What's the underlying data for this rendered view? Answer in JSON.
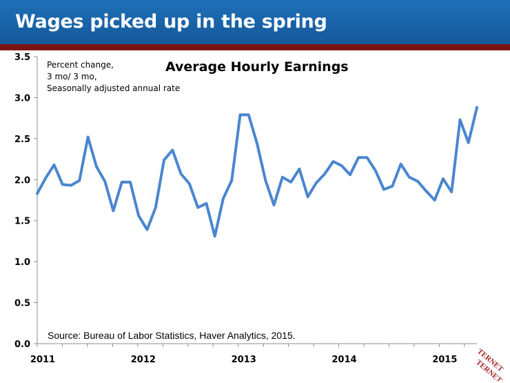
{
  "header": {
    "title": "Wages picked up in the spring"
  },
  "note_lines": [
    "Percent change,",
    "3 mo/ 3 mo,",
    "Seasonally adjusted annual rate"
  ],
  "source": "Source: Bureau of Labor Statistics, Haver Analytics, 2015.",
  "logo_text": "TERNET",
  "colors": {
    "header": "#1a64ad",
    "stripe": "#7a1412",
    "line": "#4a86cf",
    "logo": "#a0282a"
  },
  "chart_data": {
    "type": "line",
    "title": "Average Hourly Earnings",
    "xlabel": "",
    "ylabel": "",
    "xlim": [
      2011,
      2015.375
    ],
    "ylim": [
      0,
      3.5
    ],
    "y_ticks": [
      "0.0",
      "0.5",
      "1.0",
      "1.5",
      "2.0",
      "2.5",
      "3.0",
      "3.5"
    ],
    "x_ticks": [
      {
        "label": "2011",
        "value": 2011
      },
      {
        "label": "2012",
        "value": 2012
      },
      {
        "label": "2013",
        "value": 2013
      },
      {
        "label": "2014",
        "value": 2014
      },
      {
        "label": "2015",
        "value": 2015
      }
    ],
    "grid": false,
    "legend": "none",
    "series": [
      {
        "values": [
          1.83,
          2.02,
          2.18,
          1.94,
          1.93,
          1.99,
          2.52,
          2.16,
          1.98,
          1.62,
          1.97,
          1.97,
          1.56,
          1.39,
          1.66,
          2.24,
          2.36,
          2.07,
          1.95,
          1.66,
          1.71,
          1.31,
          1.77,
          1.99,
          2.79,
          2.79,
          2.44,
          1.99,
          1.69,
          2.03,
          1.97,
          2.13,
          1.79,
          1.96,
          2.07,
          2.22,
          2.17,
          2.06,
          2.27,
          2.27,
          2.11,
          1.88,
          1.92,
          2.19,
          2.03,
          1.98,
          1.86,
          1.75,
          2.01,
          1.85,
          2.73,
          2.45,
          2.88
        ]
      }
    ]
  }
}
